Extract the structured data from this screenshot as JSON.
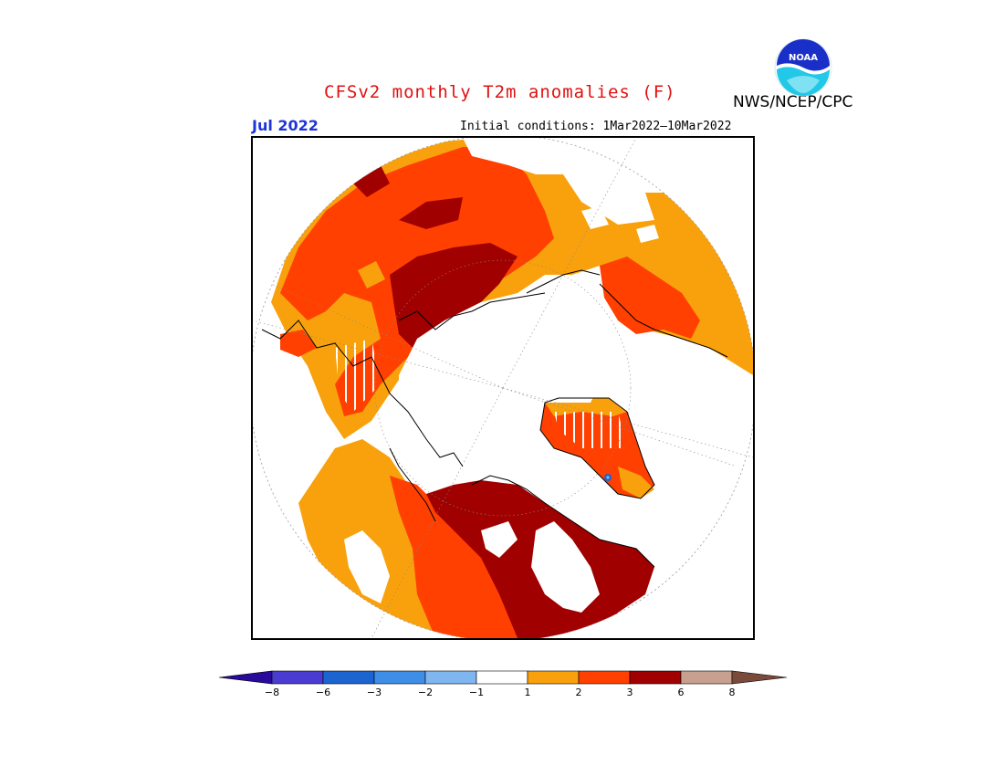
{
  "header": {
    "title": "CFSv2 monthly T2m anomalies (F)",
    "period": "Jul 2022",
    "initial_conditions": "Initial conditions: 1Mar2022–10Mar2022",
    "agency": "NWS/NCEP/CPC",
    "logo_icon": "noaa-logo-icon",
    "logo_text": "NOAA"
  },
  "colors": {
    "anom_1_2": "#f9a10c",
    "anom_2_3": "#ff4000",
    "anom_3_6": "#a00000",
    "anom_6_8": "#c8a090",
    "anom_gt_8": "#7a4a3a",
    "anom_neg_1_2": "#7fb6f0",
    "anom_neg_2_3": "#3e8ee8",
    "anom_neg_3_6": "#1c64d0",
    "anom_neg_6_8": "#4a3cd0",
    "anom_lt_neg_8": "#2a0a9a",
    "neutral": "#ffffff"
  },
  "legend": {
    "bins": [
      "#2a0a9a",
      "#4a3cd0",
      "#1c64d0",
      "#3e8ee8",
      "#7fb6f0",
      "#ffffff",
      "#f9a10c",
      "#ff4000",
      "#a00000",
      "#c8a090",
      "#7a4a3a"
    ],
    "ticks": [
      "-8",
      "-6",
      "-3",
      "-2",
      "-1",
      "1",
      "2",
      "3",
      "6",
      "8"
    ]
  }
}
